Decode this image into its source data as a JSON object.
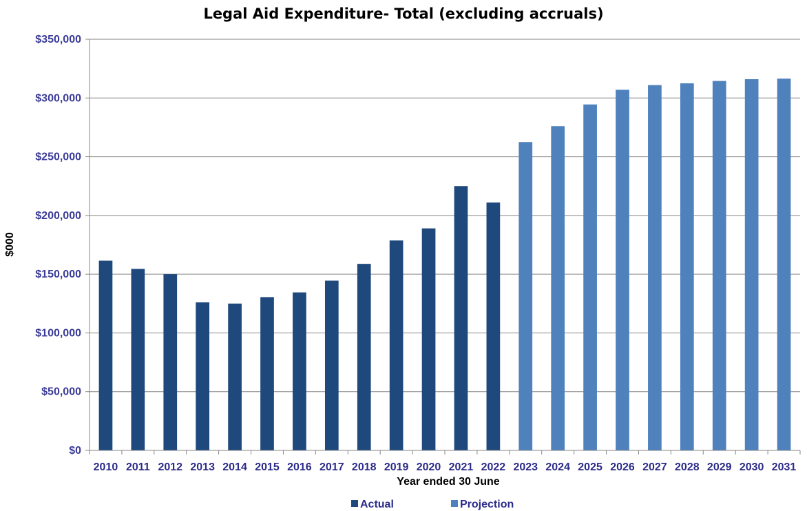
{
  "chart_data": {
    "type": "bar",
    "title": "Legal Aid Expenditure- Total (excluding accruals)",
    "xlabel": "Year ended 30 June",
    "ylabel": "$000",
    "ylim": [
      0,
      350000
    ],
    "yticks": [
      0,
      50000,
      100000,
      150000,
      200000,
      250000,
      300000,
      350000
    ],
    "ytick_labels": [
      "$0",
      "$50,000",
      "$100,000",
      "$150,000",
      "$200,000",
      "$250,000",
      "$300,000",
      "$350,000"
    ],
    "categories": [
      "2010",
      "2011",
      "2012",
      "2013",
      "2014",
      "2015",
      "2016",
      "2017",
      "2018",
      "2019",
      "2020",
      "2021",
      "2022",
      "2023",
      "2024",
      "2025",
      "2026",
      "2027",
      "2028",
      "2029",
      "2030",
      "2031"
    ],
    "series": [
      {
        "name": "Actual",
        "color": "#1f497d",
        "values": [
          161500,
          154500,
          150000,
          126000,
          125000,
          130500,
          134500,
          144500,
          158800,
          178700,
          189000,
          225000,
          211000,
          null,
          null,
          null,
          null,
          null,
          null,
          null,
          null,
          null
        ]
      },
      {
        "name": "Projection",
        "color": "#4f81bd",
        "values": [
          null,
          null,
          null,
          null,
          null,
          null,
          null,
          null,
          null,
          null,
          null,
          null,
          null,
          262500,
          276000,
          294500,
          307000,
          311000,
          312500,
          314500,
          316000,
          316500
        ]
      }
    ],
    "grid": true,
    "legend_position": "bottom"
  }
}
